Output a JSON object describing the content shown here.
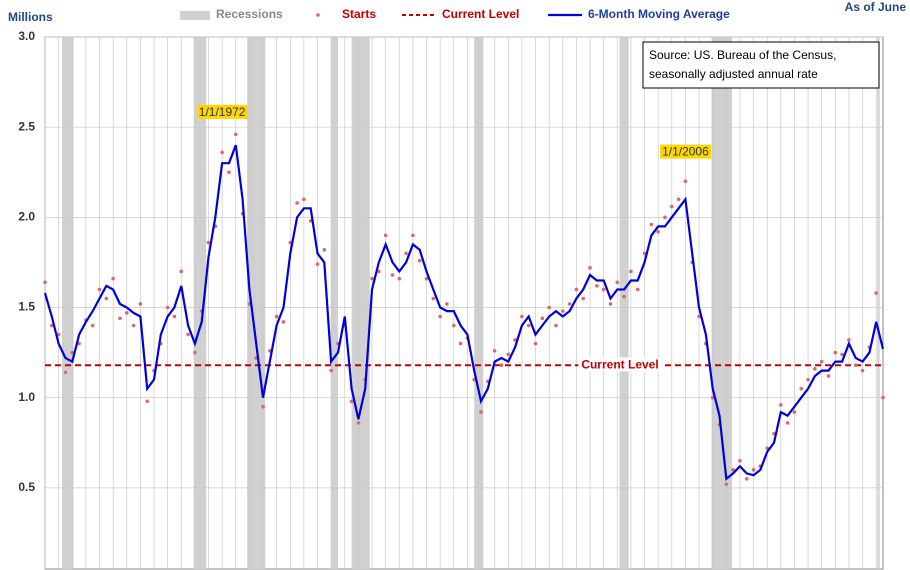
{
  "chart_data": {
    "type": "line",
    "y_label": "Millions",
    "note": "As of June",
    "source": [
      "Source: US. Bureau of the Census,",
      "seasonally adjusted annual rate"
    ],
    "xlim": [
      0,
      738
    ],
    "xticks": [
      0,
      12,
      24,
      36,
      48,
      60,
      72,
      84,
      96,
      108,
      120,
      132,
      144,
      156,
      168,
      180,
      192,
      204,
      216,
      228,
      240,
      252,
      264,
      276,
      288,
      300,
      312,
      324,
      336,
      348,
      360,
      372,
      384,
      396,
      408,
      420,
      432,
      444,
      456,
      468,
      480,
      492,
      504,
      516,
      528,
      540,
      552,
      564,
      576,
      588,
      600,
      612,
      624,
      636,
      648,
      660,
      672,
      684,
      696,
      708,
      720,
      732
    ],
    "ylim": [
      0.05,
      3.0
    ],
    "yticks": [
      {
        "value": 3.0,
        "label": "3.0"
      },
      2.5,
      {
        "value": 2.0,
        "label": "2.0"
      },
      1.5,
      {
        "value": 1.0,
        "label": "1.0"
      },
      0.5
    ],
    "grid": true,
    "recessions": {
      "name": "Recessions",
      "color": "#d0d0d0",
      "spans": [
        [
          15,
          25
        ],
        [
          131,
          142
        ],
        [
          178,
          194
        ],
        [
          252,
          258
        ],
        [
          270,
          286
        ],
        [
          378,
          386
        ],
        [
          506,
          514
        ],
        [
          587,
          605
        ],
        [
          733,
          735
        ]
      ]
    },
    "reference": {
      "name": "Current Level",
      "label": "Current Level",
      "value": 1.18,
      "color": "#c00000"
    },
    "annotations": [
      {
        "text": "1/1/1972",
        "x": 156,
        "y": 2.58
      },
      {
        "text": "1/1/2006",
        "x": 564,
        "y": 2.36
      }
    ],
    "x": [
      0,
      6,
      12,
      18,
      24,
      30,
      36,
      42,
      48,
      54,
      60,
      66,
      72,
      78,
      84,
      90,
      96,
      102,
      108,
      114,
      120,
      126,
      132,
      138,
      144,
      150,
      156,
      162,
      168,
      174,
      180,
      186,
      192,
      198,
      204,
      210,
      216,
      222,
      228,
      234,
      240,
      246,
      252,
      258,
      264,
      270,
      276,
      282,
      288,
      294,
      300,
      306,
      312,
      318,
      324,
      330,
      336,
      342,
      348,
      354,
      360,
      366,
      372,
      378,
      384,
      390,
      396,
      402,
      408,
      414,
      420,
      426,
      432,
      438,
      444,
      450,
      456,
      462,
      468,
      474,
      480,
      486,
      492,
      498,
      504,
      510,
      516,
      522,
      528,
      534,
      540,
      546,
      552,
      558,
      564,
      570,
      576,
      582,
      588,
      594,
      600,
      606,
      612,
      618,
      624,
      630,
      636,
      642,
      648,
      654,
      660,
      666,
      672,
      678,
      684,
      690,
      696,
      702,
      708,
      714,
      720,
      726,
      732,
      738
    ],
    "series": [
      {
        "name": "Starts",
        "style": "dots",
        "color": "#d96a6a",
        "values": [
          1.64,
          1.4,
          1.35,
          1.14,
          1.25,
          1.3,
          1.43,
          1.4,
          1.6,
          1.55,
          1.66,
          1.44,
          1.47,
          1.4,
          1.52,
          0.98,
          1.15,
          1.3,
          1.5,
          1.45,
          1.7,
          1.35,
          1.25,
          1.48,
          1.86,
          1.95,
          2.36,
          2.25,
          2.46,
          2.02,
          1.52,
          1.22,
          0.95,
          1.26,
          1.45,
          1.42,
          1.86,
          2.08,
          2.1,
          1.98,
          1.74,
          1.82,
          1.15,
          1.3,
          1.4,
          0.98,
          0.86,
          1.1,
          1.66,
          1.7,
          1.9,
          1.68,
          1.66,
          1.8,
          1.9,
          1.76,
          1.66,
          1.55,
          1.45,
          1.52,
          1.4,
          1.3,
          1.33,
          1.1,
          0.92,
          1.09,
          1.26,
          1.18,
          1.24,
          1.32,
          1.45,
          1.4,
          1.3,
          1.44,
          1.5,
          1.4,
          1.48,
          1.52,
          1.6,
          1.55,
          1.72,
          1.62,
          1.6,
          1.52,
          1.64,
          1.56,
          1.7,
          1.6,
          1.8,
          1.96,
          1.92,
          2.0,
          2.06,
          2.1,
          2.2,
          1.75,
          1.45,
          1.3,
          1.0,
          0.85,
          0.52,
          0.6,
          0.65,
          0.55,
          0.6,
          0.62,
          0.72,
          0.8,
          0.96,
          0.86,
          0.92,
          1.05,
          1.1,
          1.16,
          1.2,
          1.12,
          1.25,
          1.24,
          1.32,
          1.18,
          1.15,
          1.28,
          1.58,
          1.0
        ]
      },
      {
        "name": "6-Month Moving Average",
        "style": "line",
        "color": "#0000dd",
        "values": [
          1.58,
          1.45,
          1.3,
          1.22,
          1.2,
          1.35,
          1.42,
          1.48,
          1.55,
          1.62,
          1.6,
          1.52,
          1.5,
          1.47,
          1.45,
          1.05,
          1.1,
          1.35,
          1.45,
          1.5,
          1.62,
          1.4,
          1.3,
          1.42,
          1.78,
          2.0,
          2.3,
          2.3,
          2.4,
          2.1,
          1.6,
          1.3,
          1.0,
          1.2,
          1.4,
          1.5,
          1.8,
          2.0,
          2.05,
          2.05,
          1.8,
          1.75,
          1.2,
          1.25,
          1.45,
          1.05,
          0.88,
          1.05,
          1.6,
          1.75,
          1.85,
          1.75,
          1.7,
          1.75,
          1.85,
          1.82,
          1.7,
          1.6,
          1.5,
          1.48,
          1.48,
          1.4,
          1.35,
          1.15,
          0.98,
          1.05,
          1.2,
          1.22,
          1.2,
          1.28,
          1.4,
          1.45,
          1.35,
          1.4,
          1.45,
          1.48,
          1.45,
          1.48,
          1.55,
          1.6,
          1.68,
          1.65,
          1.65,
          1.55,
          1.6,
          1.6,
          1.65,
          1.65,
          1.75,
          1.9,
          1.95,
          1.95,
          2.0,
          2.05,
          2.1,
          1.8,
          1.5,
          1.35,
          1.05,
          0.9,
          0.55,
          0.58,
          0.62,
          0.58,
          0.57,
          0.6,
          0.7,
          0.75,
          0.92,
          0.9,
          0.95,
          1.0,
          1.05,
          1.12,
          1.15,
          1.15,
          1.2,
          1.2,
          1.3,
          1.22,
          1.2,
          1.25,
          1.42,
          1.27
        ]
      }
    ]
  }
}
